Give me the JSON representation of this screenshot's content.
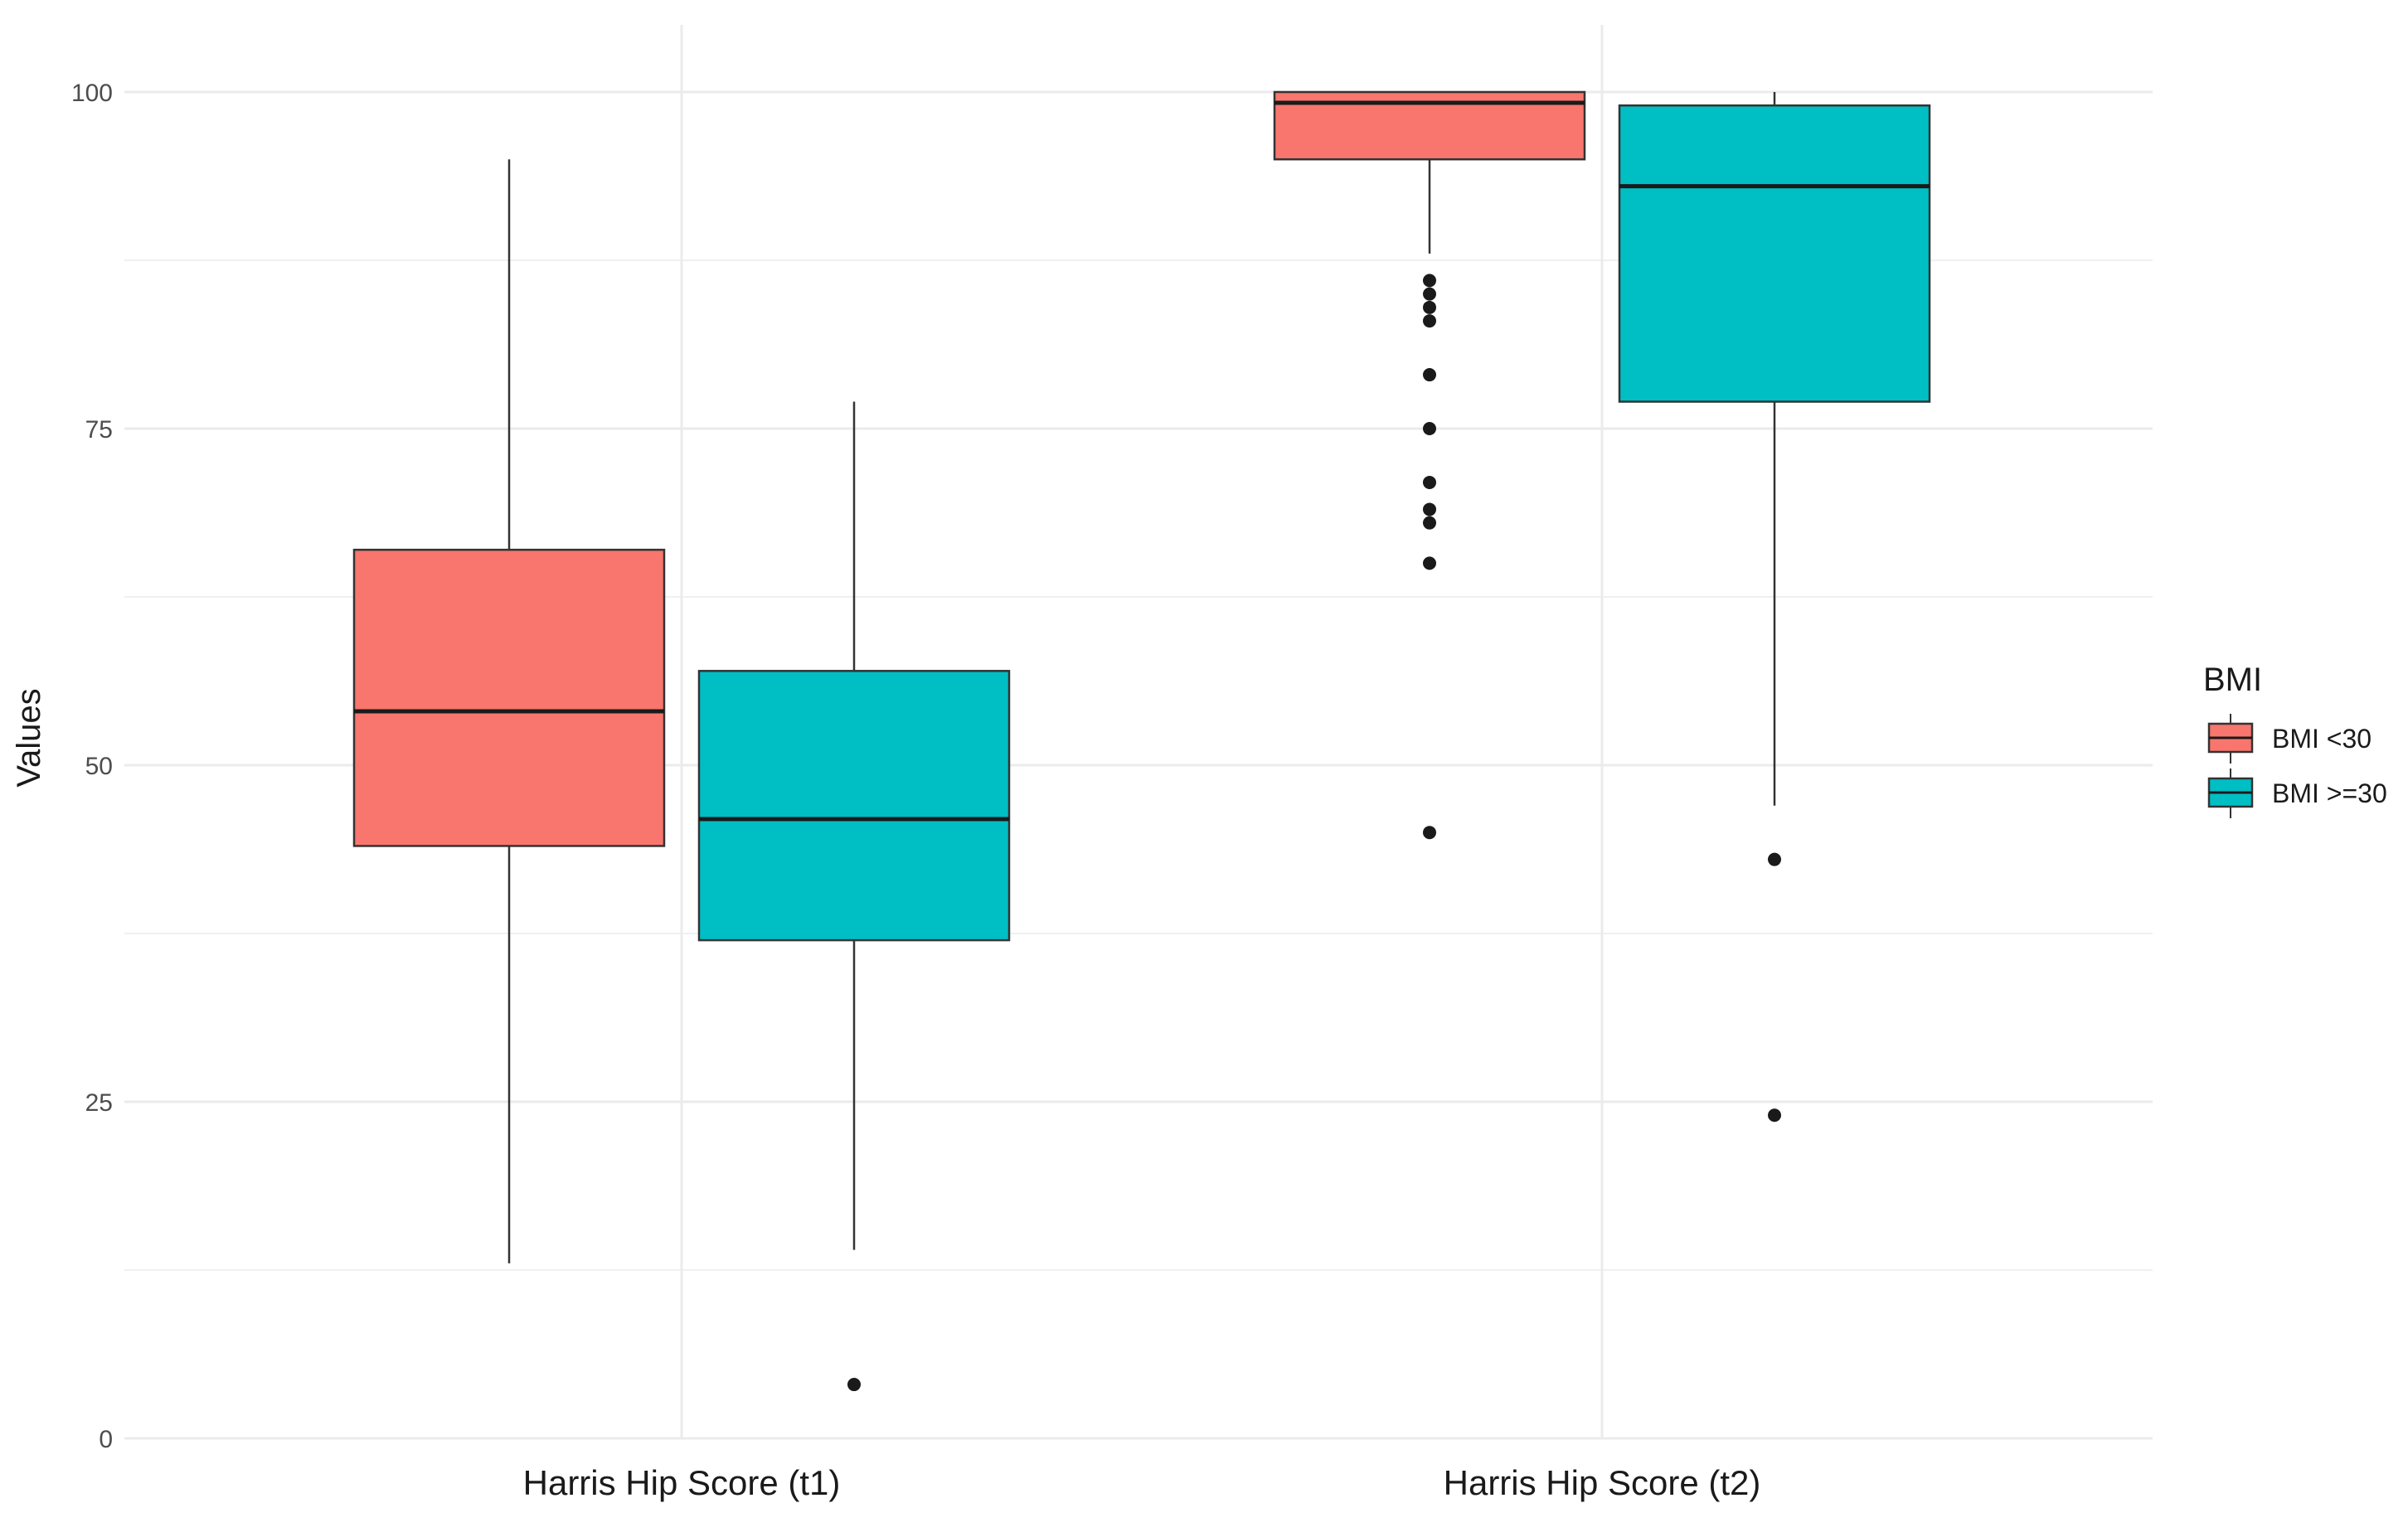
{
  "chart_data": {
    "type": "boxplot",
    "title": "",
    "xlabel": "",
    "ylabel": "Values",
    "ylim": [
      0,
      100
    ],
    "y_ticks": [
      "0",
      "25",
      "50",
      "75",
      "100"
    ],
    "y_tick_values": [
      0,
      25,
      50,
      75,
      100
    ],
    "grid": true,
    "legend_position": "right",
    "legend_title": "BMI",
    "categories": [
      "Harris Hip Score (t1)",
      "Harris Hip Score (t2)"
    ],
    "series": [
      {
        "name": "BMI <30",
        "color": "#F8766D",
        "boxes": [
          {
            "whisker_low": 13,
            "q1": 44,
            "median": 54,
            "q3": 66,
            "whisker_high": 95,
            "outliers": []
          },
          {
            "whisker_low": 88,
            "q1": 95,
            "median": 99.2,
            "q3": 100,
            "whisker_high": 100,
            "outliers": [
              86,
              85,
              84,
              83,
              79,
              75,
              71,
              69,
              68,
              65,
              45
            ]
          }
        ]
      },
      {
        "name": "BMI >=30",
        "color": "#00BFC4",
        "boxes": [
          {
            "whisker_low": 14,
            "q1": 37,
            "median": 46,
            "q3": 57,
            "whisker_high": 77,
            "outliers": [
              4
            ]
          },
          {
            "whisker_low": 47,
            "q1": 77,
            "median": 93,
            "q3": 99,
            "whisker_high": 100,
            "outliers": [
              43,
              24
            ]
          }
        ]
      }
    ]
  }
}
